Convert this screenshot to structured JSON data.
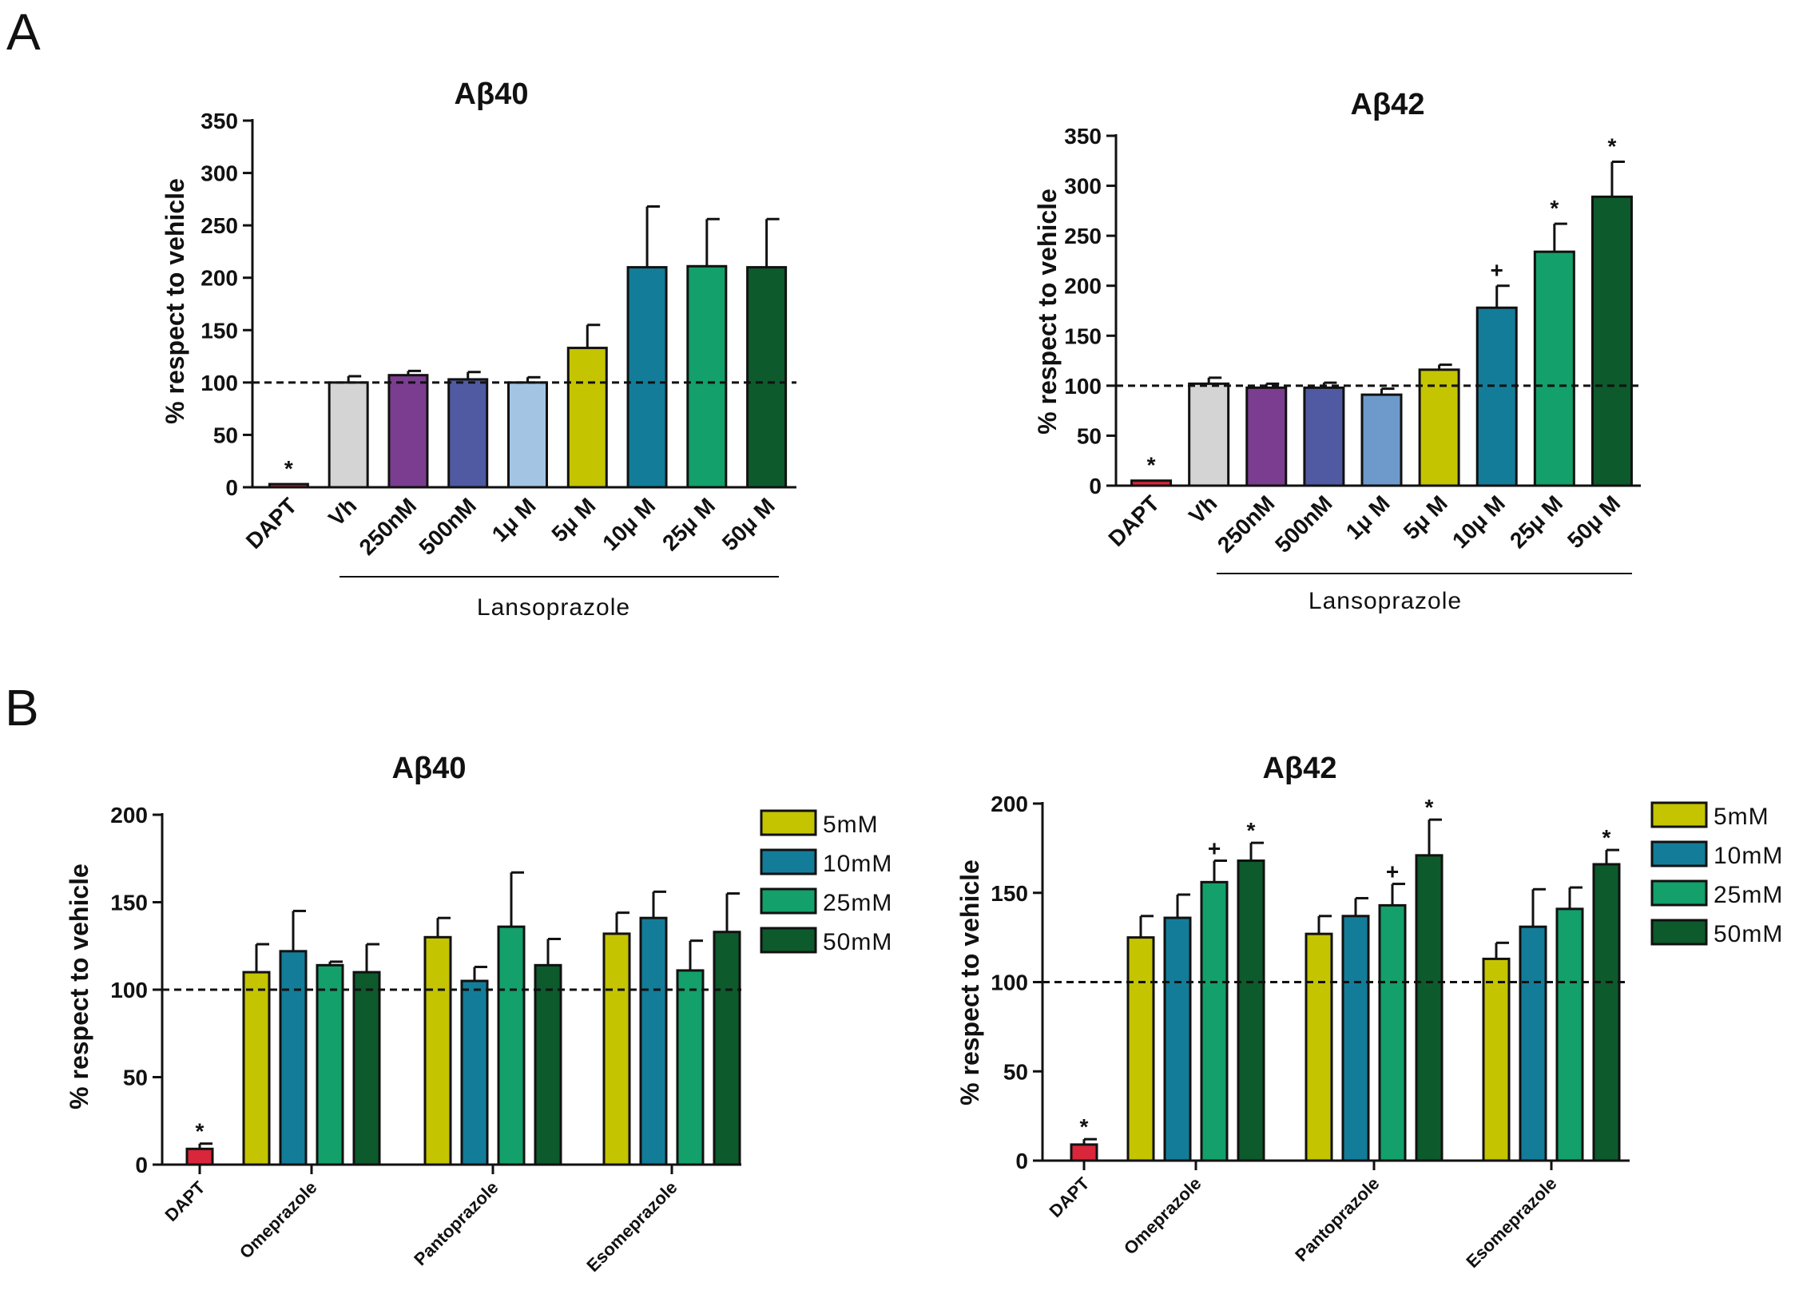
{
  "panel_letters": [
    "A",
    "B"
  ],
  "colors": {
    "DAPT": "#d9263a",
    "Vh": "#d4d4d4",
    "250nM": "#7a3d8f",
    "500nM": "#4f5aa2",
    "1uM_A40": "#a4c4e4",
    "1uM_A42": "#6e9acb",
    "5uM": "#c5c400",
    "10uM": "#137d99",
    "25uM": "#13a06a",
    "50uM": "#0d5a2c"
  },
  "chart_data": [
    {
      "id": "A40",
      "panel": "A",
      "type": "bar",
      "title": "Aβ40",
      "ylabel": "% respect to vehicle",
      "ylim": [
        0,
        350
      ],
      "yticks": [
        0,
        50,
        100,
        150,
        200,
        250,
        300,
        350
      ],
      "reference_line": 100,
      "group_label": "Lansoprazole",
      "categories": [
        "DAPT",
        "Vh",
        "250nM",
        "500nM",
        "1μ M",
        "5μ M",
        "10μ M",
        "25μ M",
        "50μ M"
      ],
      "values": [
        3,
        100,
        107,
        103,
        100,
        133,
        210,
        211,
        210
      ],
      "errors": [
        0,
        6,
        4,
        7,
        5,
        22,
        58,
        45,
        46
      ],
      "annotations": [
        "*",
        "",
        "",
        "",
        "",
        "",
        "",
        "",
        ""
      ],
      "bar_colors": [
        "#d9263a",
        "#d4d4d4",
        "#7a3d8f",
        "#4f5aa2",
        "#a4c4e4",
        "#c5c400",
        "#137d99",
        "#13a06a",
        "#0d5a2c"
      ]
    },
    {
      "id": "A42",
      "panel": "A",
      "type": "bar",
      "title": "Aβ42",
      "ylabel": "% respect to vehicle",
      "ylim": [
        0,
        350
      ],
      "yticks": [
        0,
        50,
        100,
        150,
        200,
        250,
        300,
        350
      ],
      "reference_line": 100,
      "group_label": "Lansoprazole",
      "categories": [
        "DAPT",
        "Vh",
        "250nM",
        "500nM",
        "1μ M",
        "5μ M",
        "10μ M",
        "25μ M",
        "50μ M"
      ],
      "values": [
        5,
        102,
        98,
        98,
        91,
        116,
        178,
        234,
        289
      ],
      "errors": [
        0,
        6,
        4,
        5,
        6,
        5,
        22,
        28,
        35
      ],
      "annotations": [
        "*",
        "",
        "",
        "",
        "",
        "",
        "+",
        "*",
        "*"
      ],
      "bar_colors": [
        "#d9263a",
        "#d4d4d4",
        "#7a3d8f",
        "#4f5aa2",
        "#6e9acb",
        "#c5c400",
        "#137d99",
        "#13a06a",
        "#0d5a2c"
      ]
    },
    {
      "id": "B40",
      "panel": "B",
      "type": "bar",
      "title": "Aβ40",
      "ylabel": "% respect to vehicle",
      "ylim": [
        0,
        200
      ],
      "yticks": [
        0,
        50,
        100,
        150,
        200
      ],
      "reference_line": 100,
      "dapt": {
        "label": "DAPT",
        "value": 9,
        "error": 3,
        "annotation": "*",
        "color": "#d9263a"
      },
      "categories": [
        "Omeprazole",
        "Pantoprazole",
        "Esomeprazole"
      ],
      "legend": [
        "5mM",
        "10mM",
        "25mM",
        "50mM"
      ],
      "series": [
        {
          "name": "5mM",
          "color": "#c5c400",
          "values": [
            110,
            130,
            132
          ],
          "errors": [
            16,
            11,
            12
          ],
          "annotations": [
            "",
            "",
            ""
          ]
        },
        {
          "name": "10mM",
          "color": "#137d99",
          "values": [
            122,
            105,
            141
          ],
          "errors": [
            23,
            8,
            15
          ],
          "annotations": [
            "",
            "",
            ""
          ]
        },
        {
          "name": "25mM",
          "color": "#13a06a",
          "values": [
            114,
            136,
            111
          ],
          "errors": [
            2,
            31,
            17
          ],
          "annotations": [
            "",
            "",
            ""
          ]
        },
        {
          "name": "50mM",
          "color": "#0d5a2c",
          "values": [
            110,
            114,
            133
          ],
          "errors": [
            16,
            15,
            22
          ],
          "annotations": [
            "",
            "",
            ""
          ]
        }
      ]
    },
    {
      "id": "B42",
      "panel": "B",
      "type": "bar",
      "title": "Aβ42",
      "ylabel": "% respect to vehicle",
      "ylim": [
        0,
        200
      ],
      "yticks": [
        0,
        50,
        100,
        150,
        200
      ],
      "reference_line": 100,
      "dapt": {
        "label": "DAPT",
        "value": 9,
        "error": 3,
        "annotation": "*",
        "color": "#d9263a"
      },
      "categories": [
        "Omeprazole",
        "Pantoprazole",
        "Esomeprazole"
      ],
      "legend": [
        "5mM",
        "10mM",
        "25mM",
        "50mM"
      ],
      "series": [
        {
          "name": "5mM",
          "color": "#c5c400",
          "values": [
            125,
            127,
            113
          ],
          "errors": [
            12,
            10,
            9
          ],
          "annotations": [
            "",
            "",
            ""
          ]
        },
        {
          "name": "10mM",
          "color": "#137d99",
          "values": [
            136,
            137,
            131
          ],
          "errors": [
            13,
            10,
            21
          ],
          "annotations": [
            "",
            "",
            ""
          ]
        },
        {
          "name": "25mM",
          "color": "#13a06a",
          "values": [
            156,
            143,
            141
          ],
          "errors": [
            12,
            12,
            12
          ],
          "annotations": [
            "+",
            "+",
            ""
          ]
        },
        {
          "name": "50mM",
          "color": "#0d5a2c",
          "values": [
            168,
            171,
            166
          ],
          "errors": [
            10,
            20,
            8
          ],
          "annotations": [
            "*",
            "*",
            "*"
          ]
        }
      ]
    }
  ]
}
